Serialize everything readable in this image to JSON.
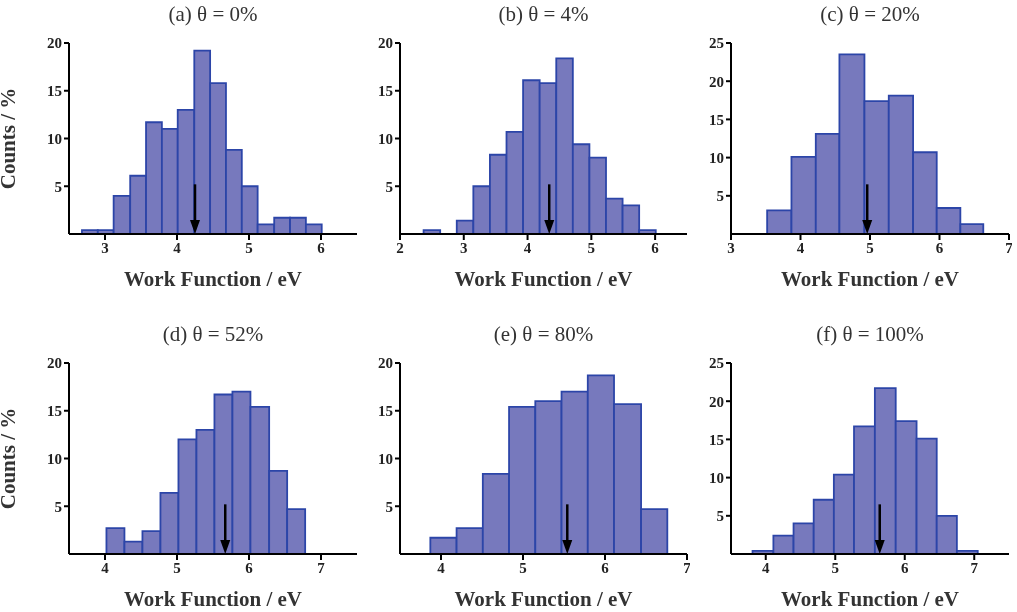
{
  "chart_data": [
    {
      "type": "histogram",
      "title": "(a) θ = 0%",
      "xlabel": "Work Function / eV",
      "ylabel": "Counts / %",
      "color": "#7779bd",
      "bins": [
        2.68,
        2.9,
        3.12,
        3.35,
        3.57,
        3.79,
        4.01,
        4.24,
        4.46,
        4.68,
        4.9,
        5.12,
        5.35,
        5.57,
        5.79,
        6.01
      ],
      "values": [
        0.4,
        0.4,
        4,
        6.1,
        11.7,
        11,
        13,
        19.2,
        15.8,
        8.8,
        5,
        1,
        1.7,
        1.7,
        1
      ],
      "xlim": [
        2.5,
        6.5
      ],
      "xticks": [
        3,
        4,
        5,
        6
      ],
      "ylim": [
        0,
        20
      ],
      "yticks": [
        5,
        10,
        15,
        20
      ],
      "ref_lines": [
        {
          "axis": "x",
          "value": 4.25
        }
      ]
    },
    {
      "type": "histogram",
      "title": "(b) θ = 4%",
      "xlabel": "Work Function / eV",
      "color": "#7779bd",
      "bins": [
        2.37,
        2.63,
        2.89,
        3.15,
        3.41,
        3.67,
        3.93,
        4.19,
        4.45,
        4.71,
        4.97,
        5.23,
        5.49,
        5.75,
        6.01
      ],
      "values": [
        0.4,
        0,
        1.4,
        5,
        8.3,
        10.7,
        16.1,
        15.8,
        18.4,
        9.4,
        8,
        3.7,
        3,
        0.4
      ],
      "xlim": [
        2,
        6.5
      ],
      "xticks": [
        2,
        3,
        4,
        5,
        6
      ],
      "ylim": [
        0,
        20
      ],
      "yticks": [
        5,
        10,
        15,
        20
      ],
      "ref_lines": [
        {
          "axis": "x",
          "value": 4.34
        }
      ]
    },
    {
      "type": "histogram",
      "title": "(c) θ = 20%",
      "xlabel": "Work Function / eV",
      "color": "#7779bd",
      "bins": [
        3.52,
        3.87,
        4.22,
        4.56,
        4.92,
        5.27,
        5.62,
        5.96,
        6.3,
        6.63
      ],
      "values": [
        3.1,
        10.1,
        13.1,
        23.5,
        17.4,
        18.1,
        10.7,
        3.4,
        1.3
      ],
      "xlim": [
        3,
        7
      ],
      "xticks": [
        3,
        4,
        5,
        6,
        7
      ],
      "ylim": [
        0,
        25
      ],
      "yticks": [
        5,
        10,
        15,
        20,
        25
      ],
      "ref_lines": [
        {
          "axis": "x",
          "value": 4.96
        }
      ]
    },
    {
      "type": "histogram",
      "title": "(d) θ = 52%",
      "xlabel": "Work Function / eV",
      "ylabel": "Counts / %",
      "color": "#7779bd",
      "bins": [
        4.02,
        4.27,
        4.52,
        4.77,
        5.02,
        5.27,
        5.52,
        5.77,
        6.02,
        6.28,
        6.53,
        6.78
      ],
      "values": [
        2.7,
        1.3,
        2.4,
        6.4,
        12,
        13,
        16.7,
        17,
        15.4,
        8.7,
        4.7
      ],
      "xlim": [
        3.5,
        7.5
      ],
      "xticks": [
        4,
        5,
        6,
        7
      ],
      "ylim": [
        0,
        20
      ],
      "yticks": [
        5,
        10,
        15,
        20
      ],
      "ref_lines": [
        {
          "axis": "x",
          "value": 5.67
        }
      ]
    },
    {
      "type": "histogram",
      "title": "(e) θ = 80%",
      "xlabel": "Work Function / eV",
      "color": "#7779bd",
      "bins": [
        3.87,
        4.19,
        4.51,
        4.83,
        5.15,
        5.47,
        5.79,
        6.11,
        6.44,
        6.76
      ],
      "values": [
        1.7,
        2.7,
        8.4,
        15.4,
        16,
        17,
        18.7,
        15.7,
        4.7
      ],
      "xlim": [
        3.5,
        7
      ],
      "xticks": [
        4,
        5,
        6,
        7
      ],
      "ylim": [
        0,
        20
      ],
      "yticks": [
        5,
        10,
        15,
        20
      ],
      "ref_lines": [
        {
          "axis": "x",
          "value": 5.54
        }
      ]
    },
    {
      "type": "histogram",
      "title": "(f) θ = 100%",
      "xlabel": "Work Function / eV",
      "color": "#7779bd",
      "bins": [
        3.81,
        4.11,
        4.4,
        4.69,
        4.98,
        5.27,
        5.57,
        5.87,
        6.17,
        6.46,
        6.75,
        7.05
      ],
      "values": [
        0.4,
        2.4,
        4,
        7.1,
        10.4,
        16.7,
        21.7,
        17.4,
        15.1,
        5,
        0.4
      ],
      "xlim": [
        3.5,
        7.5
      ],
      "xticks": [
        4,
        5,
        6,
        7
      ],
      "ylim": [
        0,
        25
      ],
      "yticks": [
        5,
        10,
        15,
        20,
        25
      ],
      "ref_lines": [
        {
          "axis": "x",
          "value": 5.64
        }
      ]
    }
  ]
}
